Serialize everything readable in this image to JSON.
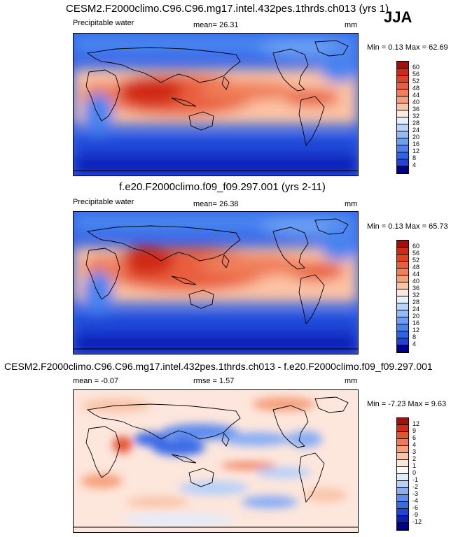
{
  "season": "JJA",
  "palette_main": [
    "#00008f",
    "#0b1fb8",
    "#1f45d6",
    "#2f63e6",
    "#4a83ef",
    "#6a9ff3",
    "#90bbf6",
    "#b8d4fa",
    "#e3f0ff",
    "#ffe9dc",
    "#fcc3a4",
    "#f6a07a",
    "#f07f5a",
    "#e95f3d",
    "#df4226",
    "#d02a16",
    "#a40f08"
  ],
  "palette_diff": [
    "#00008f",
    "#0b1fb8",
    "#1f45d6",
    "#3b6ae6",
    "#5d8cef",
    "#89aef5",
    "#b7d0fa",
    "#e0ecfd",
    "#fde6dc",
    "#f9c4a8",
    "#f4a07c",
    "#ee7b57",
    "#e55435",
    "#d32a16",
    "#a40f08"
  ],
  "panels": [
    {
      "title": "CESM2.F2000climo.C96.C96.mg17.intel.432pes.1thrds.ch013 (yrs 1)",
      "variable": "Precipitable water",
      "stat_label": "mean=",
      "stat_value": "26.31",
      "units": "mm",
      "min_label": "Min =",
      "min_value": "0.13",
      "max_label": "Max =",
      "max_value": "62.69",
      "colorbar_ticks": [
        "60",
        "56",
        "52",
        "48",
        "44",
        "40",
        "36",
        "32",
        "28",
        "24",
        "20",
        "16",
        "12",
        "8",
        "4"
      ]
    },
    {
      "title": "f.e20.F2000climo.f09_f09.297.001 (yrs 2-11)",
      "variable": "Precipitable water",
      "stat_label": "mean=",
      "stat_value": "26.38",
      "units": "mm",
      "min_label": "Min =",
      "min_value": "0.13",
      "max_label": "Max =",
      "max_value": "65.73",
      "colorbar_ticks": [
        "60",
        "56",
        "52",
        "48",
        "44",
        "40",
        "36",
        "32",
        "28",
        "24",
        "20",
        "16",
        "12",
        "8",
        "4"
      ]
    },
    {
      "title": "CESM2.F2000climo.C96.C96.mg17.intel.432pes.1thrds.ch013 - f.e20.F2000climo.f09_f09.297.001",
      "stat_label": "mean =",
      "stat_value": "-0.07",
      "rmse_label": "rmse =",
      "rmse_value": "1.57",
      "units": "mm",
      "min_label": "Min =",
      "min_value": "-7.23",
      "max_label": "Max =",
      "max_value": "9.63",
      "colorbar_ticks": [
        "12",
        "9",
        "6",
        "4",
        "3",
        "2",
        "1",
        "0",
        "-1",
        "-2",
        "-3",
        "-4",
        "-6",
        "-9",
        "-12"
      ]
    }
  ]
}
